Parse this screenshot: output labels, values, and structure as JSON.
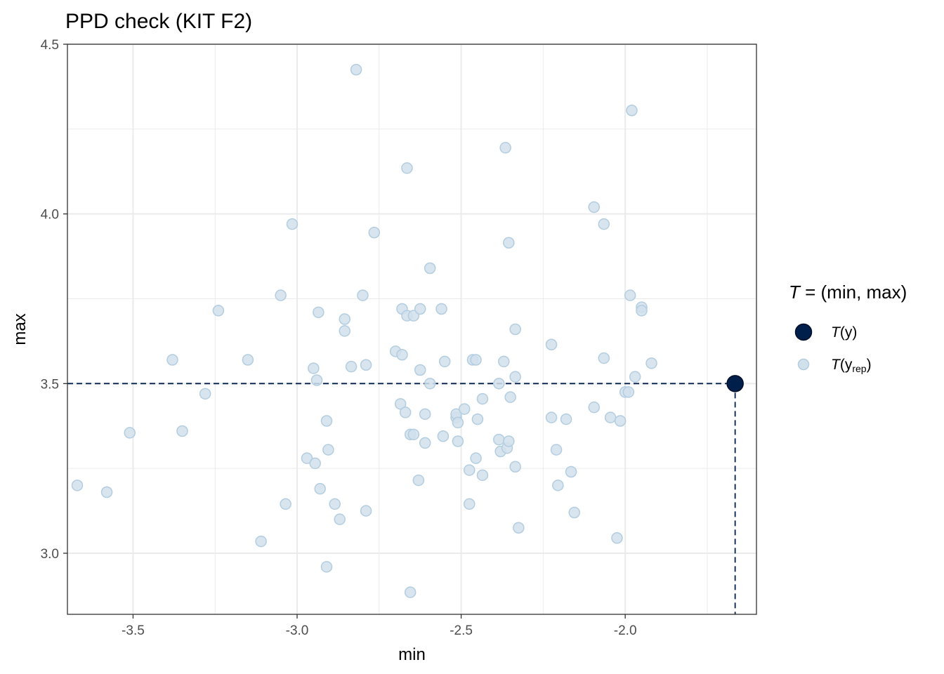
{
  "chart_data": {
    "type": "scatter",
    "title": "PPD check (KIT F2)",
    "xlabel": "min",
    "ylabel": "max",
    "xlim": [
      -3.7,
      -1.6
    ],
    "ylim": [
      2.82,
      4.5
    ],
    "xticks": [
      -3.5,
      -3.0,
      -2.5,
      -2.0
    ],
    "xtick_labels": [
      "-3.5",
      "-3.0",
      "-2.5",
      "-2.0"
    ],
    "yticks": [
      3.0,
      3.5,
      4.0,
      4.5
    ],
    "ytick_labels": [
      "3.0",
      "3.5",
      "4.0",
      "4.5"
    ],
    "grid": true,
    "legend": {
      "title_italic": "T",
      "title_rest": " = (min, max)",
      "placement": "right",
      "items": [
        {
          "italic": "T",
          "rest": "(y)"
        },
        {
          "italic": "T",
          "rest": "(y",
          "sub": "rep",
          "close": ")"
        }
      ]
    },
    "colors": {
      "observed": "#011f4b",
      "replicated_fill": "#d1e1ec",
      "replicated_stroke": "#b3cde0",
      "reference_line": "#011f4b"
    },
    "observed": {
      "x": -1.665,
      "y": 3.5
    },
    "series": [
      {
        "points": [
          [
            -3.67,
            3.2
          ],
          [
            -3.58,
            3.18
          ],
          [
            -3.51,
            3.355
          ],
          [
            -3.38,
            3.57
          ],
          [
            -3.35,
            3.36
          ],
          [
            -3.28,
            3.47
          ],
          [
            -3.24,
            3.715
          ],
          [
            -3.15,
            3.57
          ],
          [
            -3.11,
            3.035
          ],
          [
            -3.05,
            3.76
          ],
          [
            -3.035,
            3.145
          ],
          [
            -3.015,
            3.97
          ],
          [
            -2.97,
            3.28
          ],
          [
            -2.95,
            3.545
          ],
          [
            -2.945,
            3.265
          ],
          [
            -2.94,
            3.51
          ],
          [
            -2.935,
            3.71
          ],
          [
            -2.93,
            3.19
          ],
          [
            -2.91,
            3.39
          ],
          [
            -2.905,
            3.305
          ],
          [
            -2.91,
            2.96
          ],
          [
            -2.885,
            3.145
          ],
          [
            -2.87,
            3.1
          ],
          [
            -2.855,
            3.69
          ],
          [
            -2.855,
            3.655
          ],
          [
            -2.835,
            3.55
          ],
          [
            -2.82,
            4.425
          ],
          [
            -2.8,
            3.76
          ],
          [
            -2.79,
            3.555
          ],
          [
            -2.79,
            3.125
          ],
          [
            -2.765,
            3.945
          ],
          [
            -2.7,
            3.595
          ],
          [
            -2.685,
            3.44
          ],
          [
            -2.68,
            3.585
          ],
          [
            -2.68,
            3.72
          ],
          [
            -2.67,
            3.415
          ],
          [
            -2.665,
            3.7
          ],
          [
            -2.665,
            4.135
          ],
          [
            -2.655,
            3.35
          ],
          [
            -2.655,
            2.885
          ],
          [
            -2.645,
            3.35
          ],
          [
            -2.645,
            3.7
          ],
          [
            -2.63,
            3.215
          ],
          [
            -2.625,
            3.54
          ],
          [
            -2.625,
            3.72
          ],
          [
            -2.61,
            3.41
          ],
          [
            -2.61,
            3.325
          ],
          [
            -2.595,
            3.5
          ],
          [
            -2.595,
            3.84
          ],
          [
            -2.56,
            3.72
          ],
          [
            -2.555,
            3.345
          ],
          [
            -2.55,
            3.565
          ],
          [
            -2.515,
            3.4
          ],
          [
            -2.515,
            3.41
          ],
          [
            -2.51,
            3.385
          ],
          [
            -2.51,
            3.33
          ],
          [
            -2.49,
            3.425
          ],
          [
            -2.475,
            3.245
          ],
          [
            -2.475,
            3.145
          ],
          [
            -2.465,
            3.57
          ],
          [
            -2.455,
            3.57
          ],
          [
            -2.455,
            3.28
          ],
          [
            -2.45,
            3.395
          ],
          [
            -2.435,
            3.455
          ],
          [
            -2.435,
            3.23
          ],
          [
            -2.385,
            3.335
          ],
          [
            -2.385,
            3.5
          ],
          [
            -2.38,
            3.3
          ],
          [
            -2.37,
            3.565
          ],
          [
            -2.365,
            4.195
          ],
          [
            -2.36,
            3.31
          ],
          [
            -2.355,
            3.33
          ],
          [
            -2.355,
            3.915
          ],
          [
            -2.35,
            3.46
          ],
          [
            -2.335,
            3.52
          ],
          [
            -2.335,
            3.66
          ],
          [
            -2.335,
            3.255
          ],
          [
            -2.325,
            3.075
          ],
          [
            -2.225,
            3.615
          ],
          [
            -2.225,
            3.4
          ],
          [
            -2.21,
            3.305
          ],
          [
            -2.205,
            3.2
          ],
          [
            -2.18,
            3.395
          ],
          [
            -2.165,
            3.24
          ],
          [
            -2.155,
            3.12
          ],
          [
            -2.095,
            4.02
          ],
          [
            -2.095,
            3.43
          ],
          [
            -2.065,
            3.575
          ],
          [
            -2.065,
            3.97
          ],
          [
            -2.045,
            3.4
          ],
          [
            -2.025,
            3.045
          ],
          [
            -2.015,
            3.39
          ],
          [
            -2.0,
            3.475
          ],
          [
            -1.99,
            3.475
          ],
          [
            -1.985,
            3.76
          ],
          [
            -1.98,
            4.305
          ],
          [
            -1.97,
            3.52
          ],
          [
            -1.95,
            3.725
          ],
          [
            -1.95,
            3.715
          ],
          [
            -1.92,
            3.56
          ]
        ]
      }
    ]
  }
}
